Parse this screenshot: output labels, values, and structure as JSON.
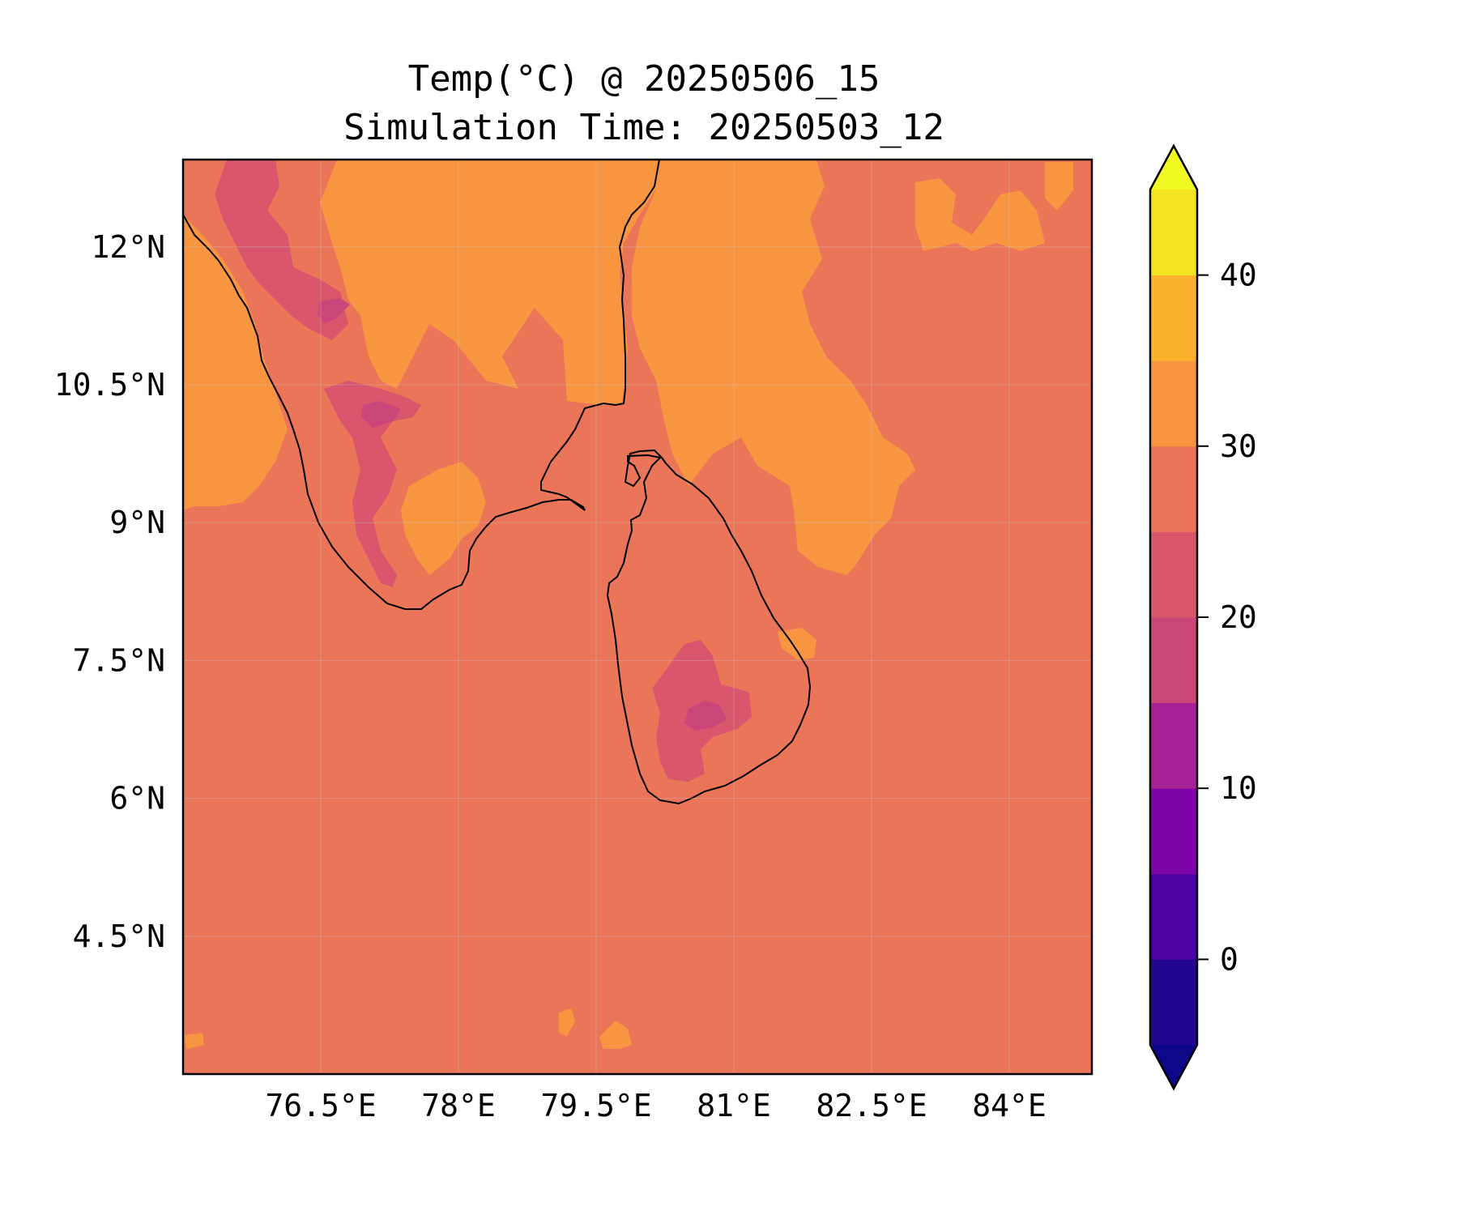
{
  "title": {
    "line1": "Temp(°C) @ 20250506_15",
    "line2": "Simulation Time: 20250503_12"
  },
  "map": {
    "extent": {
      "lon_min": 75.0,
      "lon_max": 84.9,
      "lat_min": 3.0,
      "lat_max": 12.95
    },
    "background_color": "#ea7559",
    "grid": true,
    "x_ticks": [
      {
        "value": 76.5,
        "label": "76.5°E"
      },
      {
        "value": 78.0,
        "label": "78°E"
      },
      {
        "value": 79.5,
        "label": "79.5°E"
      },
      {
        "value": 81.0,
        "label": "81°E"
      },
      {
        "value": 82.5,
        "label": "82.5°E"
      },
      {
        "value": 84.0,
        "label": "84°E"
      }
    ],
    "y_ticks": [
      {
        "value": 12.0,
        "label": "12°N"
      },
      {
        "value": 10.5,
        "label": "10.5°N"
      },
      {
        "value": 9.0,
        "label": "9°N"
      },
      {
        "value": 7.5,
        "label": "7.5°N"
      },
      {
        "value": 6.0,
        "label": "6°N"
      },
      {
        "value": 4.5,
        "label": "4.5°N"
      }
    ]
  },
  "colorbar": {
    "min": -5,
    "max": 45,
    "extend": "both",
    "levels": [
      {
        "from": -5,
        "to": 0,
        "color": "#220690"
      },
      {
        "from": 0,
        "to": 5,
        "color": "#4c02a1"
      },
      {
        "from": 5,
        "to": 10,
        "color": "#7e03a8"
      },
      {
        "from": 10,
        "to": 15,
        "color": "#a82296"
      },
      {
        "from": 15,
        "to": 20,
        "color": "#cb4679"
      },
      {
        "from": 20,
        "to": 25,
        "color": "#d9566d"
      },
      {
        "from": 25,
        "to": 30,
        "color": "#ea7559"
      },
      {
        "from": 30,
        "to": 35,
        "color": "#f89540"
      },
      {
        "from": 35,
        "to": 40,
        "color": "#fdb22f"
      },
      {
        "from": 40,
        "to": 45,
        "color": "#f3e421"
      }
    ],
    "under_color": "#0d0887",
    "over_color": "#f0f921",
    "ticks": [
      {
        "value": 0,
        "label": "0"
      },
      {
        "value": 10,
        "label": "10"
      },
      {
        "value": 20,
        "label": "20"
      },
      {
        "value": 30,
        "label": "30"
      },
      {
        "value": 40,
        "label": "40"
      }
    ]
  }
}
